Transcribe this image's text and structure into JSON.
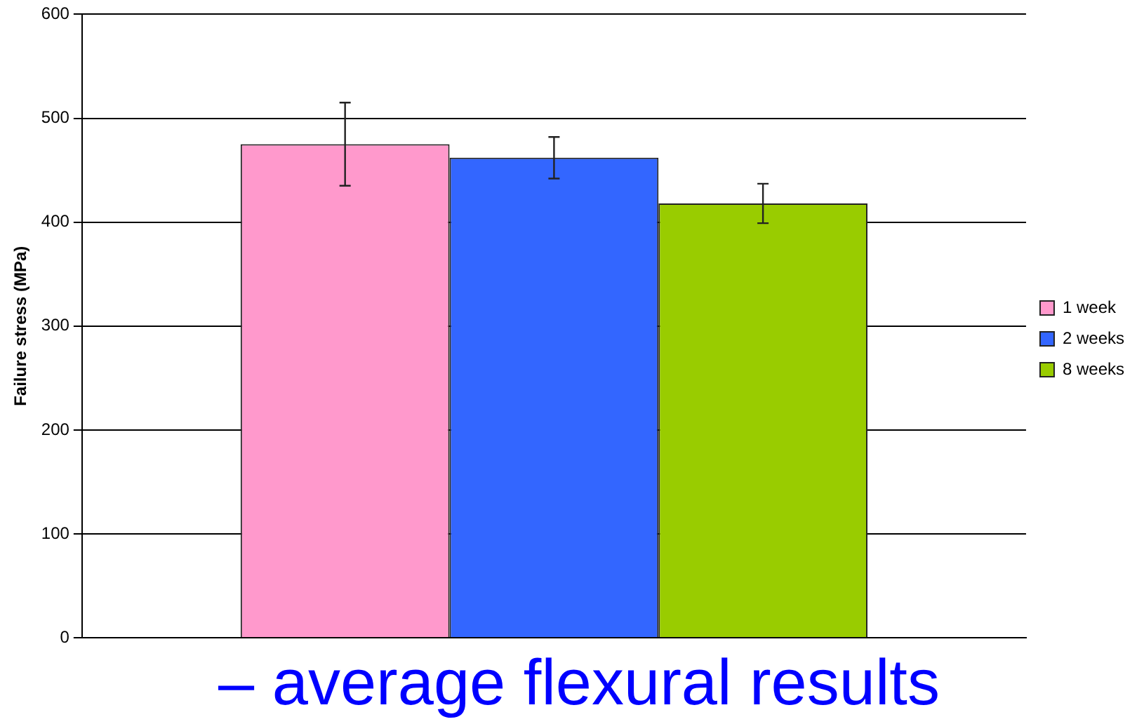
{
  "chart_data": {
    "type": "bar",
    "ylabel": "Failure stress (MPa)",
    "categories": [
      null
    ],
    "series": [
      {
        "name": "1 week",
        "color": "#ff99cc",
        "values": [
          475
        ],
        "errors": [
          40
        ]
      },
      {
        "name": "2 weeks",
        "color": "#3366ff",
        "values": [
          462
        ],
        "errors": [
          20
        ]
      },
      {
        "name": "8 weeks",
        "color": "#99cc00",
        "values": [
          418
        ],
        "errors": [
          19
        ]
      }
    ],
    "ylim": [
      0,
      600
    ],
    "yticks": [
      0,
      100,
      200,
      300,
      400,
      500,
      600
    ],
    "grid": "y",
    "legend": "right",
    "annotations": [
      "– average flexural results"
    ]
  }
}
